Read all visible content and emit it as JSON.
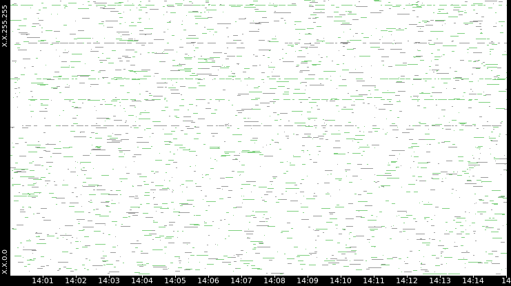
{
  "chart_data": {
    "type": "scatter",
    "title": "",
    "xlabel": "",
    "ylabel": "",
    "y_tick_labels": [
      "X.X.0.0",
      "X.X.255.255"
    ],
    "ylim": [
      0,
      65535
    ],
    "x_tick_labels": [
      "14:01",
      "14:02",
      "14:03",
      "14:04",
      "14:05",
      "14:06",
      "14:07",
      "14:08",
      "14:09",
      "14:10",
      "14:11",
      "14:12",
      "14:13",
      "14:14",
      "14"
    ],
    "xlim_minutes": [
      "14:00",
      "14:15"
    ],
    "grid": false,
    "legend": "none",
    "colors": {
      "primary": "#7dcf7d",
      "secondary": "#999999",
      "background": "#ffffff",
      "frame": "#000000"
    },
    "dense_rows": [
      {
        "y": 64390,
        "color": "#7dcf7d"
      },
      {
        "y": 55400,
        "color": "#999999"
      },
      {
        "y": 46860,
        "color": "#7dcf7d"
      },
      {
        "y": 41940,
        "color": "#7dcf7d"
      },
      {
        "y": 35700,
        "color": "#999999"
      }
    ]
  }
}
